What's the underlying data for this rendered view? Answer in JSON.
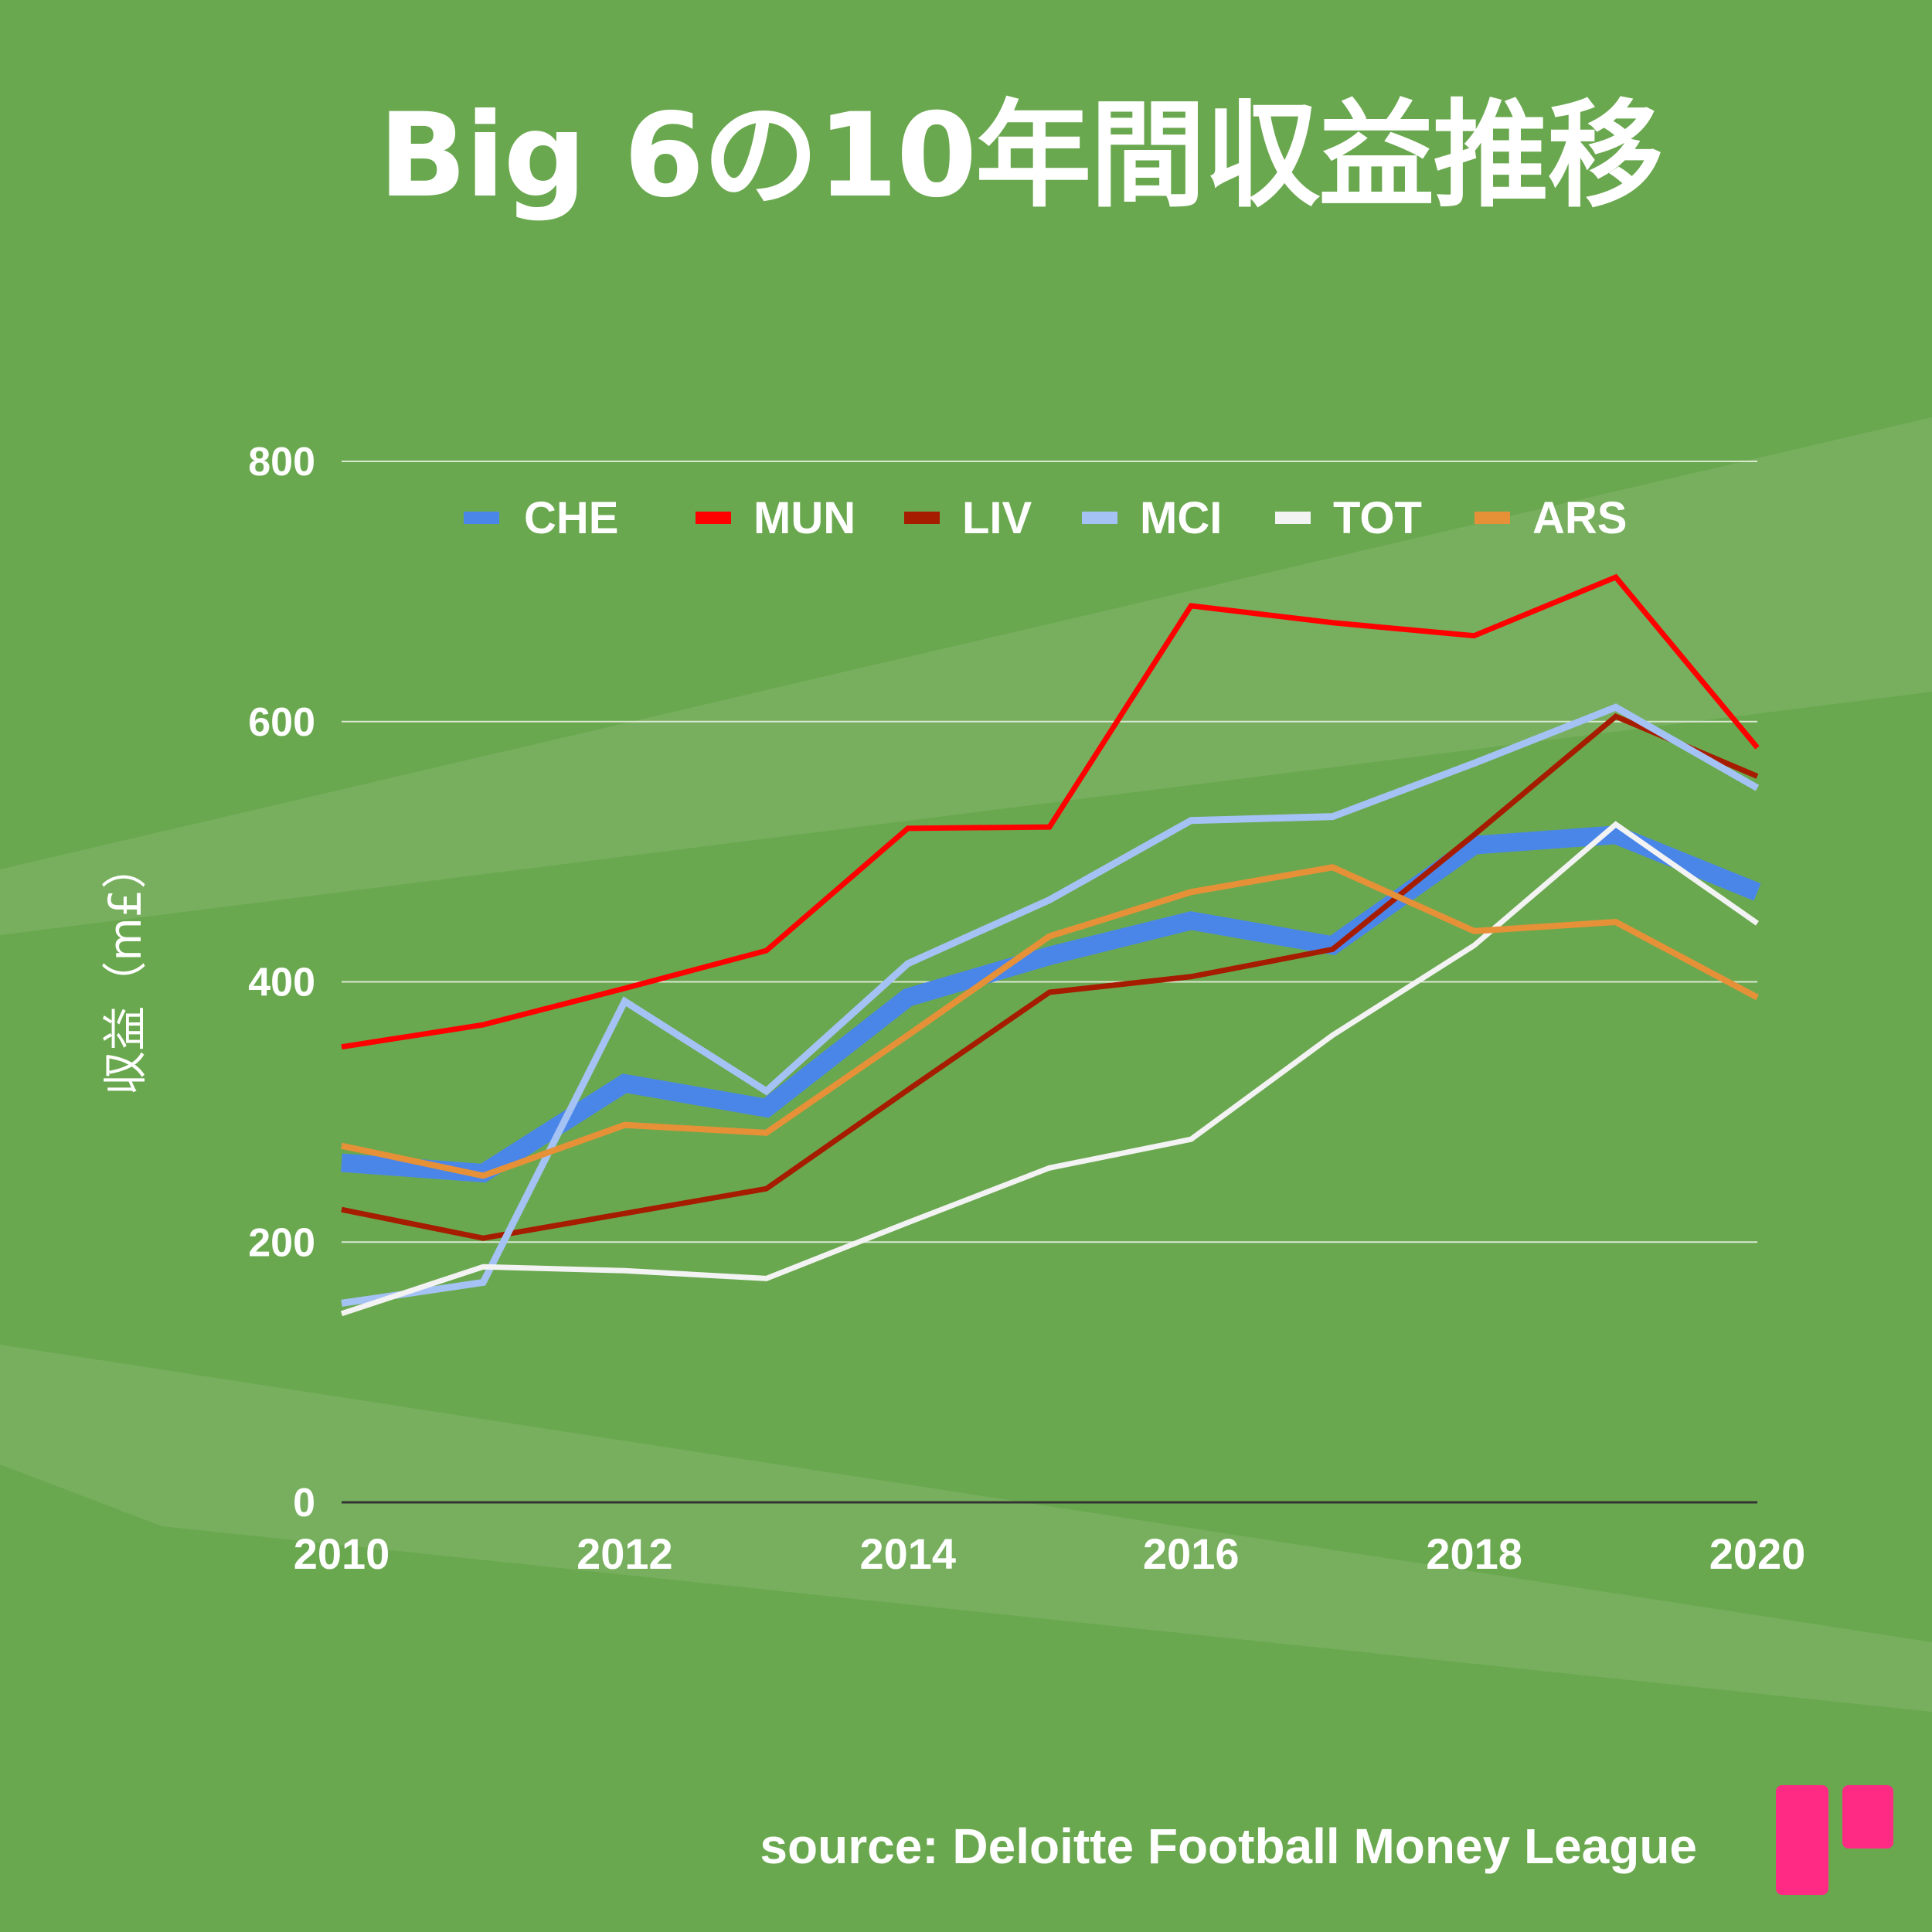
{
  "title": "Big 6の10年間収益推移",
  "source": "source: Deloitte Football Money League",
  "colors": {
    "background": "#6aa84f",
    "brand_logo": "#ff2a84"
  },
  "chart_data": {
    "type": "line",
    "title": "Big 6の10年間収益推移",
    "ylabel": "収益（m£）",
    "xlabel": "",
    "ylim": [
      0,
      800
    ],
    "y_ticks": [
      "0",
      "200",
      "400",
      "600",
      "800"
    ],
    "x_ticks": [
      "2010",
      "2012",
      "2014",
      "2016",
      "2018",
      "2020"
    ],
    "x": [
      2010,
      2011,
      2012,
      2013,
      2014,
      2015,
      2016,
      2017,
      2018,
      2019,
      2020
    ],
    "legend_position": "top",
    "grid": true,
    "series": [
      {
        "name": "CHE",
        "color": "#4a86e8",
        "values": [
          261,
          253,
          322,
          303,
          388,
          420,
          447,
          428,
          505,
          513,
          469
        ]
      },
      {
        "name": "MUN",
        "color": "#ff0000",
        "values": [
          350,
          367,
          395,
          424,
          518,
          519,
          689,
          676,
          666,
          711,
          580
        ]
      },
      {
        "name": "LIV",
        "color": "#a61c00",
        "values": [
          225,
          203,
          222,
          241,
          317,
          392,
          404,
          425,
          513,
          604,
          558
        ]
      },
      {
        "name": "MCI",
        "color": "#a4c2f4",
        "values": [
          153,
          169,
          385,
          316,
          414,
          463,
          524,
          527,
          568,
          611,
          549
        ]
      },
      {
        "name": "TOT",
        "color": "#f3f3f3",
        "values": [
          145,
          181,
          178,
          172,
          215,
          257,
          279,
          359,
          428,
          521,
          445
        ]
      },
      {
        "name": "ARS",
        "color": "#e69138",
        "values": [
          274,
          251,
          290,
          284,
          359,
          435,
          469,
          488,
          439,
          446,
          388
        ]
      }
    ]
  }
}
